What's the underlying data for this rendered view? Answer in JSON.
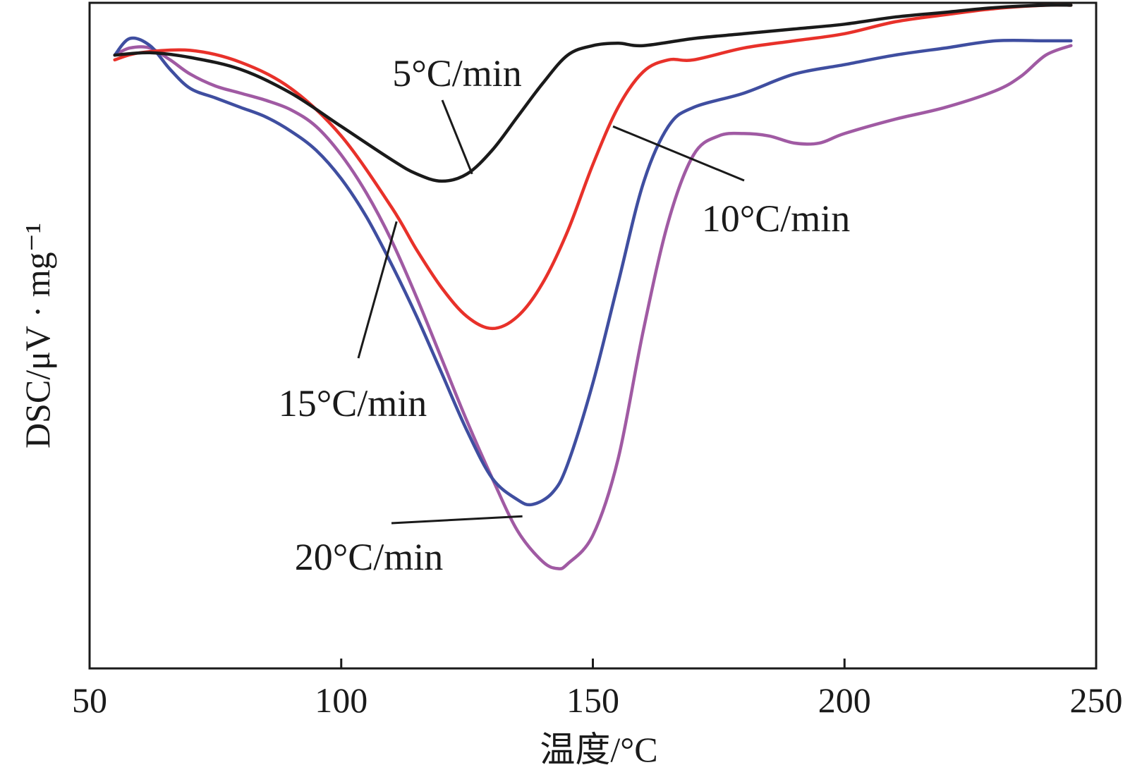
{
  "chart_data": {
    "type": "line",
    "title": "",
    "xlabel": "温度/°C",
    "ylabel": "DSC/μV · mg⁻¹",
    "xlim": [
      50,
      250
    ],
    "ylim": [
      -14,
      0
    ],
    "x_ticks": [
      50,
      100,
      150,
      200,
      250
    ],
    "x_tick_labels": [
      "50",
      "100",
      "150",
      "200",
      "250"
    ],
    "y_ticks_shown": false,
    "grid": false,
    "series": [
      {
        "name": "5°C/min",
        "color": "#1a1a1a",
        "x": [
          55,
          62,
          70,
          80,
          90,
          100,
          110,
          115,
          120,
          125,
          130,
          135,
          140,
          145,
          150,
          155,
          160,
          170,
          180,
          190,
          200,
          210,
          220,
          230,
          240,
          245
        ],
        "y": [
          -1.1,
          -1.05,
          -1.15,
          -1.4,
          -1.9,
          -2.6,
          -3.3,
          -3.6,
          -3.75,
          -3.6,
          -3.1,
          -2.4,
          -1.7,
          -1.1,
          -0.9,
          -0.85,
          -0.9,
          -0.75,
          -0.65,
          -0.55,
          -0.45,
          -0.3,
          -0.2,
          -0.1,
          -0.05,
          -0.05
        ]
      },
      {
        "name": "10°C/min",
        "color": "#e8312a",
        "x": [
          55,
          60,
          70,
          80,
          90,
          100,
          110,
          115,
          120,
          125,
          130,
          135,
          140,
          145,
          150,
          155,
          160,
          165,
          170,
          180,
          190,
          200,
          210,
          220,
          230,
          240,
          245
        ],
        "y": [
          -1.2,
          -1.05,
          -1.0,
          -1.25,
          -1.8,
          -2.8,
          -4.3,
          -5.2,
          -6.0,
          -6.6,
          -6.85,
          -6.6,
          -5.9,
          -4.8,
          -3.4,
          -2.2,
          -1.45,
          -1.2,
          -1.2,
          -0.95,
          -0.8,
          -0.65,
          -0.4,
          -0.25,
          -0.12,
          -0.05,
          -0.05
        ]
      },
      {
        "name": "15°C/min",
        "color": "#3f4ea0",
        "x": [
          55,
          58,
          62,
          66,
          70,
          75,
          80,
          85,
          90,
          95,
          100,
          105,
          110,
          115,
          120,
          125,
          130,
          135,
          138,
          142,
          145,
          150,
          155,
          160,
          165,
          170,
          180,
          190,
          200,
          210,
          220,
          230,
          240,
          245
        ],
        "y": [
          -1.1,
          -0.75,
          -0.9,
          -1.4,
          -1.8,
          -2.0,
          -2.2,
          -2.4,
          -2.7,
          -3.1,
          -3.7,
          -4.5,
          -5.5,
          -6.6,
          -7.8,
          -9.0,
          -10.0,
          -10.45,
          -10.55,
          -10.3,
          -9.7,
          -8.0,
          -5.9,
          -3.8,
          -2.6,
          -2.2,
          -1.9,
          -1.5,
          -1.3,
          -1.1,
          -0.95,
          -0.8,
          -0.8,
          -0.8
        ]
      },
      {
        "name": "20°C/min",
        "color": "#a05aa3",
        "x": [
          55,
          58,
          62,
          66,
          70,
          75,
          80,
          85,
          90,
          95,
          100,
          105,
          110,
          115,
          120,
          125,
          130,
          135,
          140,
          143,
          145,
          150,
          155,
          160,
          165,
          170,
          175,
          180,
          185,
          190,
          195,
          200,
          210,
          220,
          230,
          235,
          240,
          245
        ],
        "y": [
          -1.1,
          -0.95,
          -0.95,
          -1.2,
          -1.5,
          -1.75,
          -1.9,
          -2.05,
          -2.25,
          -2.6,
          -3.2,
          -4.0,
          -5.0,
          -6.2,
          -7.5,
          -8.8,
          -10.0,
          -11.1,
          -11.75,
          -11.9,
          -11.8,
          -11.2,
          -9.6,
          -6.9,
          -4.6,
          -3.2,
          -2.8,
          -2.75,
          -2.8,
          -2.95,
          -2.95,
          -2.75,
          -2.45,
          -2.2,
          -1.85,
          -1.55,
          -1.1,
          -0.9
        ]
      }
    ],
    "annotations": [
      {
        "series": "5°C/min",
        "text": "5°C/min",
        "x": 126,
        "y": -3.6
      },
      {
        "series": "10°C/min",
        "text": "10°C/min",
        "x": 154,
        "y": -2.6
      },
      {
        "series": "15°C/min",
        "text": "15°C/min",
        "x": 111,
        "y": -4.6
      },
      {
        "series": "20°C/min",
        "text": "20°C/min",
        "x": 136,
        "y": -10.8
      }
    ]
  }
}
